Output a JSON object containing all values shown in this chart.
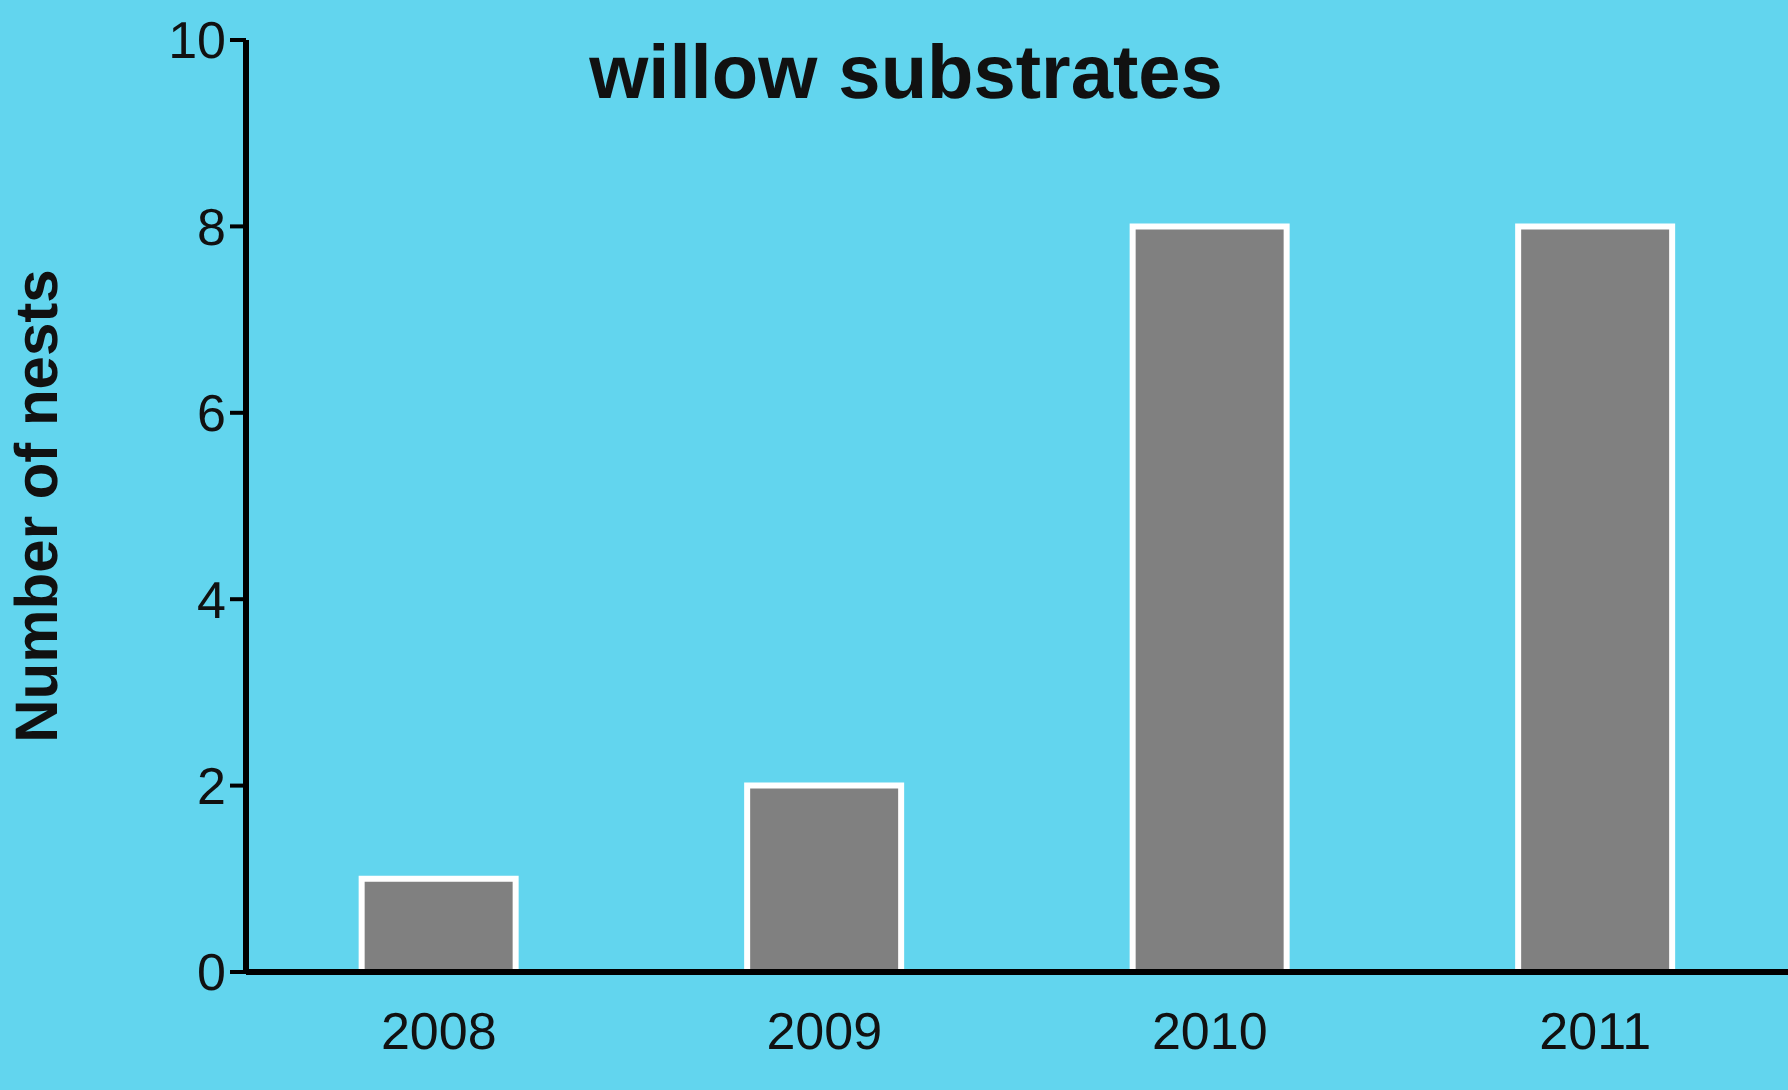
{
  "chart_data": {
    "type": "bar",
    "title": "willow substrates",
    "ylabel": "Number of nests",
    "categories": [
      "2008",
      "2009",
      "2010",
      "2011"
    ],
    "values": [
      1,
      2,
      8,
      8
    ],
    "color": "#808080",
    "ylim": [
      0,
      10
    ],
    "yticks": [
      0,
      2,
      4,
      6,
      8,
      10
    ],
    "grid": false
  }
}
